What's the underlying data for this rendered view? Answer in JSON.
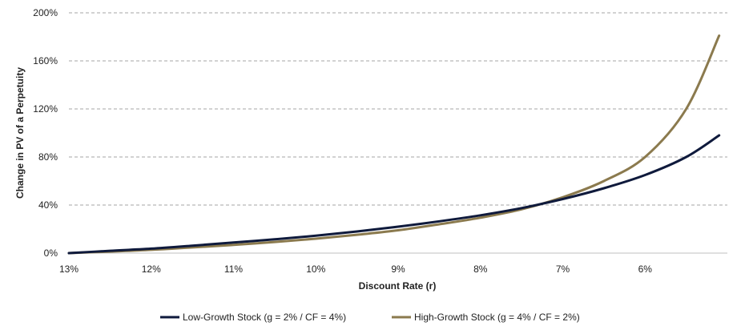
{
  "chart_data": {
    "type": "line",
    "title": "",
    "xlabel": "Discount Rate (r)",
    "ylabel": "Change in PV of a Perpetuity",
    "x_reversed": true,
    "xlim": [
      0.13,
      0.05
    ],
    "ylim": [
      0,
      200
    ],
    "x_ticks": [
      0.13,
      0.12,
      0.11,
      0.1,
      0.09,
      0.08,
      0.07,
      0.06
    ],
    "x_tick_labels": [
      "13%",
      "12%",
      "11%",
      "10%",
      "9%",
      "8%",
      "7%",
      "6%"
    ],
    "y_ticks": [
      0,
      40,
      80,
      120,
      160,
      200
    ],
    "y_tick_labels": [
      "0%",
      "40%",
      "80%",
      "120%",
      "160%",
      "200%"
    ],
    "grid": {
      "horizontal": true,
      "style": "dashed"
    },
    "legend_position": "bottom",
    "x": [
      0.13,
      0.125,
      0.12,
      0.115,
      0.11,
      0.105,
      0.1,
      0.095,
      0.09,
      0.085,
      0.08,
      0.075,
      0.07,
      0.065,
      0.06,
      0.055,
      0.051
    ],
    "series": [
      {
        "name": "Low-Growth Stock (g = 2% / CF = 4%)",
        "color": "#0f1a3c",
        "values": [
          0,
          1.9,
          3.7,
          6.2,
          8.8,
          11.5,
          14.5,
          18.0,
          22.0,
          26.5,
          31.5,
          37.5,
          45.0,
          54.0,
          65.0,
          80.0,
          98.0
        ]
      },
      {
        "name": "High-Growth Stock (g = 4% / CF = 2%)",
        "color": "#8b7a4e",
        "values": [
          0,
          1.3,
          2.7,
          4.7,
          6.8,
          9.3,
          12.0,
          15.3,
          19.0,
          24.0,
          29.5,
          36.5,
          46.5,
          60.0,
          80.0,
          120.0,
          181.0
        ]
      }
    ]
  }
}
